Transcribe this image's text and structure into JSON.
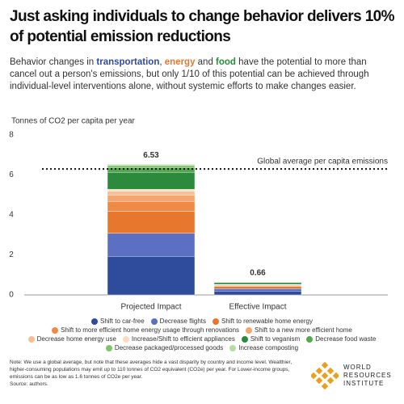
{
  "title": "Just asking individuals to change behavior delivers 10% of potential emission reductions",
  "subtitle": [
    "Behavior changes in ",
    "transportation",
    ", ",
    "energy",
    " and ",
    "food",
    " have the potential to more than cancel out a person's emissions, but only 1/10 of this potential can be achieved through individual-level interventions alone, without systemic efforts to make changes easier."
  ],
  "chart_data": {
    "type": "stacked_bar",
    "ylabel": "Tonnes of CO2 per capita per year",
    "categories": [
      "Projected Impact",
      "Effective Impact"
    ],
    "ylim": [
      0,
      8
    ],
    "yticks": [
      0,
      2,
      4,
      6,
      8
    ],
    "grid": false,
    "totals": [
      6.53,
      0.66
    ],
    "reference": {
      "value": 6.3,
      "label": "Global average per capita emissions"
    },
    "series": [
      {
        "name": "Shift to car-free",
        "color": "#2f4b9c",
        "values": [
          1.93,
          0.19
        ]
      },
      {
        "name": "Decrease flights",
        "color": "#5b70c2",
        "values": [
          1.15,
          0.12
        ]
      },
      {
        "name": "Shift to renewable home energy",
        "color": "#e8772e",
        "values": [
          1.1,
          0.11
        ]
      },
      {
        "name": "Shift to more efficient home energy usage through renovations",
        "color": "#f08a45",
        "values": [
          0.5,
          0.05
        ]
      },
      {
        "name": "Shift to a new more efficient home",
        "color": "#f5a56e",
        "values": [
          0.3,
          0.03
        ]
      },
      {
        "name": "Decrease home energy use",
        "color": "#f8bf96",
        "values": [
          0.2,
          0.02
        ]
      },
      {
        "name": "Increase/Shift to efficient appliances",
        "color": "#fbdbc4",
        "values": [
          0.1,
          0.01
        ]
      },
      {
        "name": "Shift to veganism",
        "color": "#2c8a3d",
        "values": [
          0.85,
          0.09
        ]
      },
      {
        "name": "Decrease food waste",
        "color": "#56a84f",
        "values": [
          0.25,
          0.025
        ]
      },
      {
        "name": "Decrease packaged/processed goods",
        "color": "#80c46b",
        "values": [
          0.1,
          0.01
        ]
      },
      {
        "name": "Increase composting",
        "color": "#b7dca1",
        "values": [
          0.05,
          0.005
        ]
      }
    ]
  },
  "note": "Note: We use a global average, but note that these averages hide a vast disparity by country and income level. Wealthier, higher-consuming populations may emit up to 110 tonnes of CO2 equivalent (CO2e) per year. For Lower-income groups, emissions can be as low as 1.6 tonnes of CO2e per year.",
  "source": "Source: authors.",
  "logo": [
    "WORLD",
    "RESOURCES",
    "INSTITUTE"
  ]
}
